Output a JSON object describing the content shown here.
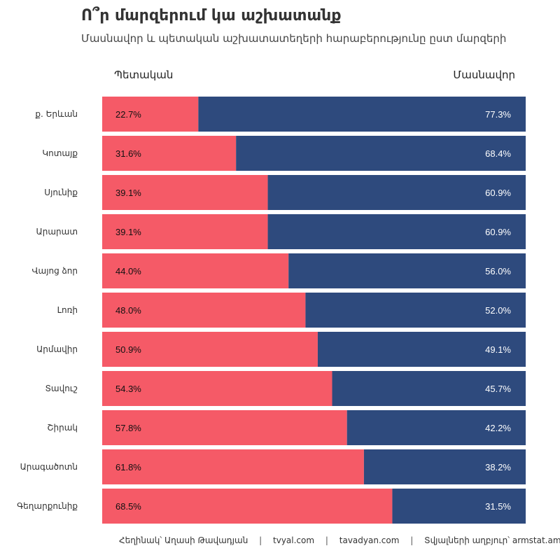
{
  "title": "Ո՞ր մարզերում կա աշխատանք",
  "subtitle": "Մասնավոր և պետական աշխատատեղերի հարաբերությունը ըստ մարզերի",
  "legend": {
    "left": "Պետական",
    "right": "Մասնավոր"
  },
  "colors": {
    "public": "#f55a67",
    "private": "#2e4a7d",
    "public_text": "#111111",
    "private_text": "#ffffff"
  },
  "footer": {
    "author": "Հեղինակ՝ Աղասի Թավադյան",
    "site1": "tvyal.com",
    "site2": "tavadyan.com",
    "source": "Տվյալների աղբյուր՝ armstat.am",
    "separator": "|"
  },
  "chart_data": {
    "type": "bar",
    "orientation": "horizontal",
    "stacked": true,
    "unit": "%",
    "categories": [
      "ք. Երևան",
      "Կոտայք",
      "Սյունիք",
      "Արարատ",
      "Վայոց ձոր",
      "Լոռի",
      "Արմավիր",
      "Տավուշ",
      "Շիրակ",
      "Արագածոտն",
      "Գեղարքունիք"
    ],
    "series": [
      {
        "name": "Պետական",
        "values": [
          22.7,
          31.6,
          39.1,
          39.1,
          44.0,
          48.0,
          50.9,
          54.3,
          57.8,
          61.8,
          68.5
        ]
      },
      {
        "name": "Մասնավոր",
        "values": [
          77.3,
          68.4,
          60.9,
          60.9,
          56.0,
          52.0,
          49.1,
          45.7,
          42.2,
          38.2,
          31.5
        ]
      }
    ],
    "xlim": [
      0,
      100
    ],
    "grid": false
  }
}
